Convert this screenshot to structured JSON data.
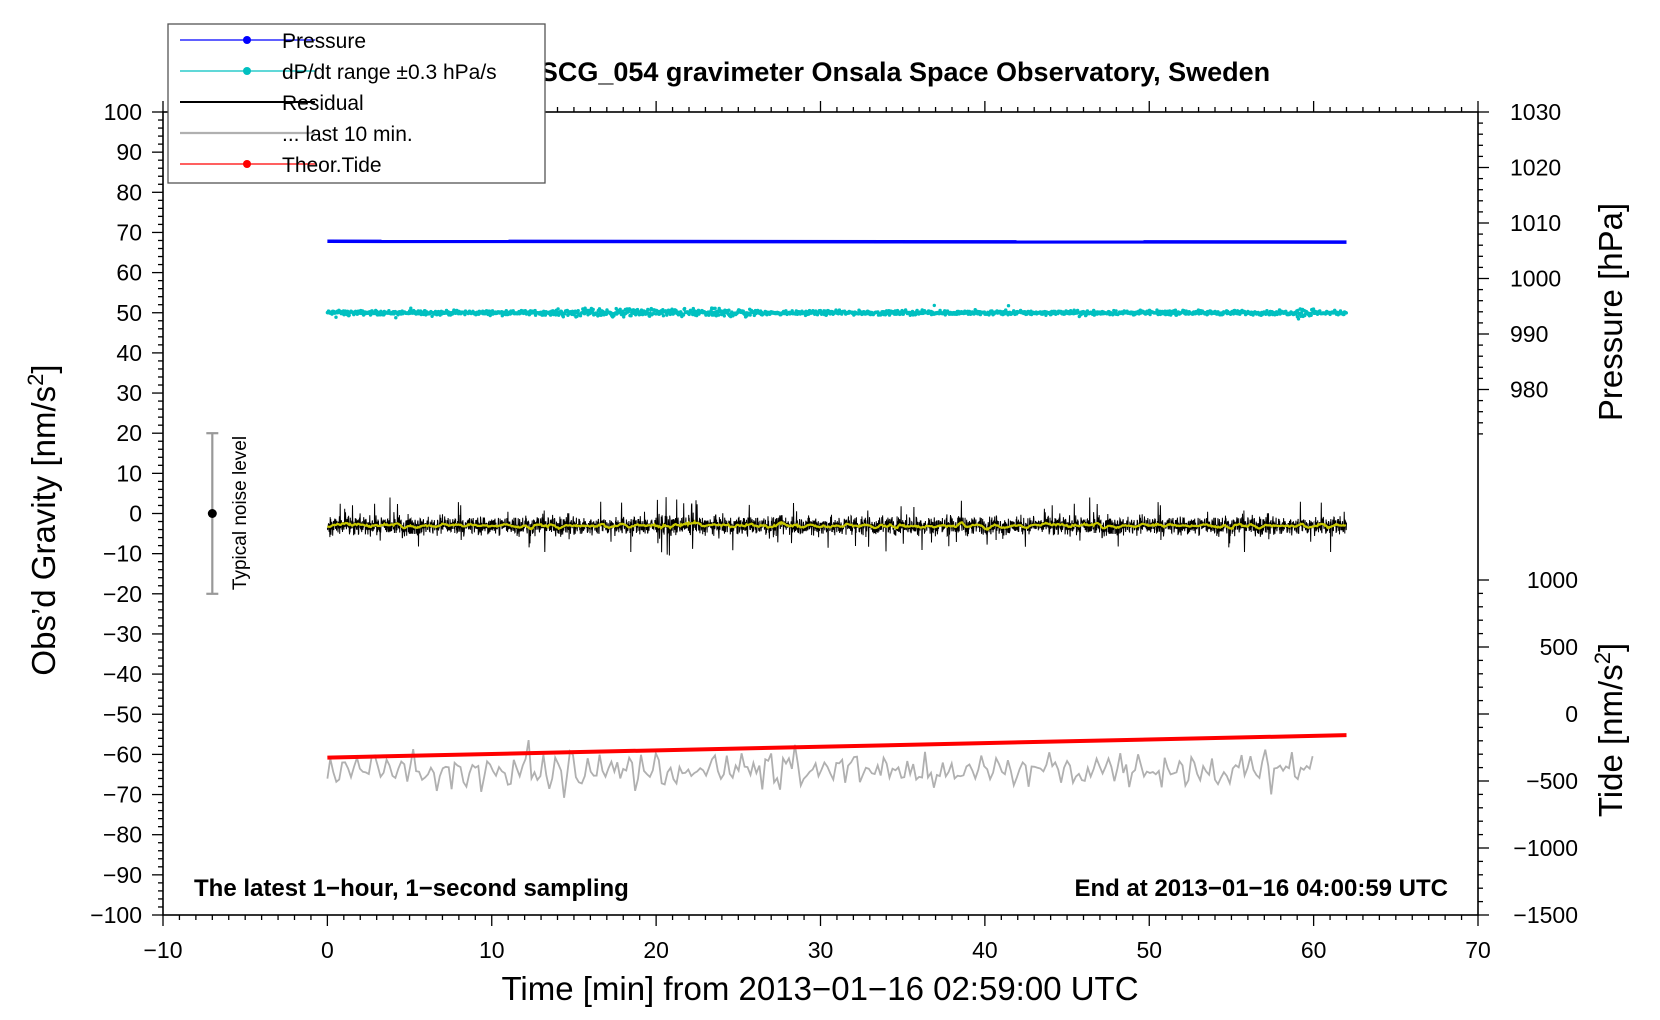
{
  "chart_data": {
    "type": "line",
    "title": "SCG_054 gravimeter Onsala Space Observatory, Sweden",
    "xlabel": "Time [min] from 2013−01−16 02:59:00 UTC",
    "ylabel": "Obs’d Gravity [nm/s",
    "ylabel_sup": "2",
    "ylabel_close": "]",
    "y2label": "Pressure [hPa]",
    "y3label": "Tide [nm/s",
    "y3label_sup": "2",
    "y3label_close": "]",
    "xlim": [
      -10,
      70
    ],
    "ylim": [
      -100,
      100
    ],
    "pressure_axis_range": [
      970,
      1030
    ],
    "tide_axis_range": [
      -1500,
      1000
    ],
    "x_ticks": [
      "−10",
      "0",
      "10",
      "20",
      "30",
      "40",
      "50",
      "60",
      "70"
    ],
    "y_ticks": [
      "100",
      "90",
      "80",
      "70",
      "60",
      "50",
      "40",
      "30",
      "20",
      "10",
      "0",
      "−10",
      "−20",
      "−30",
      "−40",
      "−50",
      "−60",
      "−70",
      "−80",
      "−90",
      "−100"
    ],
    "pressure_ticks": [
      "1030",
      "1020",
      "1010",
      "1000",
      "990",
      "980"
    ],
    "tide_ticks": [
      "1000",
      "500",
      "0",
      "−500",
      "−1000",
      "−1500"
    ],
    "annotation_left": "The latest 1−hour, 1−second sampling",
    "annotation_right": "End at 2013−01−16 04:00:59 UTC",
    "noise_label": "Typical noise level",
    "noise_bar": {
      "x": -7,
      "center": 0,
      "range": [
        -20,
        20
      ]
    },
    "legend_position": "top-left",
    "grid": false,
    "series": [
      {
        "name": "Pressure",
        "color": "#0000ff",
        "x_range": [
          0,
          62
        ],
        "values": [
          67.8,
          67.6
        ],
        "note": "approx. 1010 hPa"
      },
      {
        "name": "dP/dt range ±0.3 hPa/s",
        "color": "#00c0c0",
        "x_range": [
          0,
          62
        ],
        "center": 50,
        "spread": 2.5
      },
      {
        "name": "Residual",
        "color": "#000000",
        "x_range": [
          0,
          62
        ],
        "center": -3,
        "spread": 8
      },
      {
        "name": "... last 10 min.",
        "color": "#b0b0b0",
        "x_range": [
          0,
          60
        ],
        "center": -64,
        "spread": 8
      },
      {
        "name": "Theor.Tide",
        "color": "#ff0000",
        "x_range": [
          0,
          62
        ],
        "values": [
          -60.8,
          -55.2
        ]
      }
    ],
    "smoothed_residual_color": "#c8c800"
  }
}
